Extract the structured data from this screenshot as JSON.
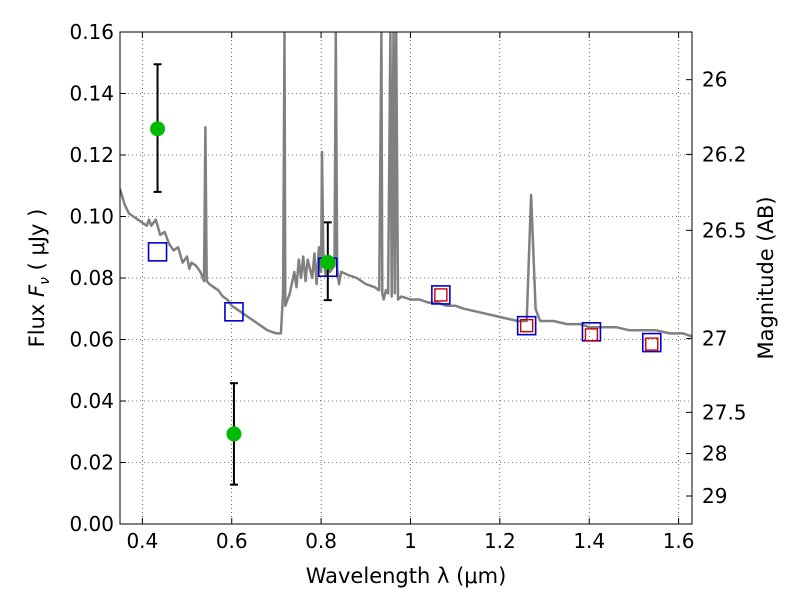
{
  "chart_data": {
    "type": "line",
    "xlabel": "Wavelength  λ (μm)",
    "ylabel": "Flux  Fν (μJy)",
    "ylabel_parts": {
      "prefix": "Flux  ",
      "symbol": "F",
      "subscript": "ν",
      "units": "  ( μJy )"
    },
    "y2label": "Magnitude (AB)",
    "xlim": [
      0.35,
      1.63
    ],
    "ylim": [
      0.0,
      0.16
    ],
    "grid": true,
    "x_ticks": [
      {
        "value": 0.4,
        "label": "0.4"
      },
      {
        "value": 0.6,
        "label": "0.6"
      },
      {
        "value": 0.8,
        "label": "0.8"
      },
      {
        "value": 1.0,
        "label": "1"
      },
      {
        "value": 1.2,
        "label": "1.2"
      },
      {
        "value": 1.4,
        "label": "1.4"
      },
      {
        "value": 1.6,
        "label": "1.6"
      }
    ],
    "y_ticks": [
      {
        "value": 0.0,
        "label": "0.00"
      },
      {
        "value": 0.02,
        "label": "0.02"
      },
      {
        "value": 0.04,
        "label": "0.04"
      },
      {
        "value": 0.06,
        "label": "0.06"
      },
      {
        "value": 0.08,
        "label": "0.08"
      },
      {
        "value": 0.1,
        "label": "0.10"
      },
      {
        "value": 0.12,
        "label": "0.12"
      },
      {
        "value": 0.14,
        "label": "0.14"
      },
      {
        "value": 0.16,
        "label": "0.16"
      }
    ],
    "y2_ticks": [
      {
        "flux": 0.1445,
        "label": "26"
      },
      {
        "flux": 0.1202,
        "label": "26.2"
      },
      {
        "flux": 0.0955,
        "label": "26.5"
      },
      {
        "flux": 0.0603,
        "label": "27"
      },
      {
        "flux": 0.0363,
        "label": "27.5"
      },
      {
        "flux": 0.0229,
        "label": "28"
      },
      {
        "flux": 0.0091,
        "label": "29"
      }
    ],
    "series": [
      {
        "kind": "line",
        "color": "#808080",
        "points": [
          [
            0.35,
            0.109
          ],
          [
            0.36,
            0.104
          ],
          [
            0.37,
            0.101
          ],
          [
            0.38,
            0.1
          ],
          [
            0.39,
            0.099
          ],
          [
            0.4,
            0.098
          ],
          [
            0.41,
            0.097
          ],
          [
            0.415,
            0.099
          ],
          [
            0.42,
            0.097
          ],
          [
            0.43,
            0.099
          ],
          [
            0.44,
            0.094
          ],
          [
            0.45,
            0.095
          ],
          [
            0.46,
            0.091
          ],
          [
            0.47,
            0.089
          ],
          [
            0.48,
            0.09
          ],
          [
            0.49,
            0.085
          ],
          [
            0.5,
            0.087
          ],
          [
            0.505,
            0.083
          ],
          [
            0.51,
            0.085
          ],
          [
            0.52,
            0.084
          ],
          [
            0.53,
            0.082
          ],
          [
            0.538,
            0.079
          ],
          [
            0.541,
            0.129
          ],
          [
            0.544,
            0.079
          ],
          [
            0.55,
            0.078
          ],
          [
            0.56,
            0.077
          ],
          [
            0.57,
            0.076
          ],
          [
            0.58,
            0.074
          ],
          [
            0.59,
            0.073
          ],
          [
            0.6,
            0.071
          ],
          [
            0.62,
            0.069
          ],
          [
            0.64,
            0.067
          ],
          [
            0.66,
            0.065
          ],
          [
            0.68,
            0.063
          ],
          [
            0.7,
            0.062
          ],
          [
            0.71,
            0.062
          ],
          [
            0.715,
            0.075
          ],
          [
            0.718,
            0.16
          ],
          [
            0.72,
            0.071
          ],
          [
            0.73,
            0.075
          ],
          [
            0.74,
            0.082
          ],
          [
            0.745,
            0.077
          ],
          [
            0.75,
            0.086
          ],
          [
            0.755,
            0.08
          ],
          [
            0.76,
            0.087
          ],
          [
            0.765,
            0.079
          ],
          [
            0.77,
            0.086
          ],
          [
            0.78,
            0.08
          ],
          [
            0.785,
            0.088
          ],
          [
            0.79,
            0.078
          ],
          [
            0.795,
            0.09
          ],
          [
            0.8,
            0.082
          ],
          [
            0.802,
            0.121
          ],
          [
            0.805,
            0.088
          ],
          [
            0.81,
            0.081
          ],
          [
            0.815,
            0.085
          ],
          [
            0.82,
            0.082
          ],
          [
            0.83,
            0.084
          ],
          [
            0.833,
            0.16
          ],
          [
            0.836,
            0.083
          ],
          [
            0.84,
            0.078
          ],
          [
            0.845,
            0.082
          ],
          [
            0.86,
            0.081
          ],
          [
            0.88,
            0.08
          ],
          [
            0.9,
            0.078
          ],
          [
            0.92,
            0.077
          ],
          [
            0.93,
            0.076
          ],
          [
            0.935,
            0.16
          ],
          [
            0.937,
            0.075
          ],
          [
            0.94,
            0.073
          ],
          [
            0.945,
            0.076
          ],
          [
            0.95,
            0.075
          ],
          [
            0.955,
            0.16
          ],
          [
            0.958,
            0.074
          ],
          [
            0.962,
            0.16
          ],
          [
            0.965,
            0.075
          ],
          [
            0.968,
            0.16
          ],
          [
            0.972,
            0.073
          ],
          [
            0.98,
            0.074
          ],
          [
            1.0,
            0.073
          ],
          [
            1.02,
            0.073
          ],
          [
            1.04,
            0.072
          ],
          [
            1.06,
            0.072
          ],
          [
            1.08,
            0.071
          ],
          [
            1.1,
            0.071
          ],
          [
            1.12,
            0.07
          ],
          [
            1.15,
            0.069
          ],
          [
            1.18,
            0.068
          ],
          [
            1.21,
            0.067
          ],
          [
            1.24,
            0.066
          ],
          [
            1.26,
            0.066
          ],
          [
            1.27,
            0.107
          ],
          [
            1.28,
            0.07
          ],
          [
            1.29,
            0.066
          ],
          [
            1.32,
            0.066
          ],
          [
            1.35,
            0.065
          ],
          [
            1.38,
            0.065
          ],
          [
            1.4,
            0.064
          ],
          [
            1.43,
            0.064
          ],
          [
            1.46,
            0.064
          ],
          [
            1.49,
            0.063
          ],
          [
            1.52,
            0.063
          ],
          [
            1.55,
            0.063
          ],
          [
            1.58,
            0.062
          ],
          [
            1.61,
            0.062
          ],
          [
            1.63,
            0.061
          ]
        ]
      },
      {
        "kind": "blue-squares",
        "color": "#0000cc",
        "points": [
          [
            0.434,
            0.0885
          ],
          [
            0.605,
            0.069
          ],
          [
            0.815,
            0.0835
          ],
          [
            1.068,
            0.0745
          ],
          [
            1.26,
            0.0645
          ],
          [
            1.405,
            0.0625
          ],
          [
            1.54,
            0.059
          ]
        ]
      },
      {
        "kind": "red-squares",
        "color": "#cc0000",
        "points": [
          [
            1.068,
            0.0745
          ],
          [
            1.26,
            0.0645
          ],
          [
            1.405,
            0.0615
          ],
          [
            1.54,
            0.0585
          ]
        ]
      },
      {
        "kind": "green-points-with-errors",
        "color": "#00bb00",
        "points": [
          {
            "x": 0.434,
            "y": 0.1285,
            "low": 0.108,
            "high": 0.1495
          },
          {
            "x": 0.605,
            "y": 0.0293,
            "low": 0.0128,
            "high": 0.0458
          },
          {
            "x": 0.815,
            "y": 0.0851,
            "low": 0.0728,
            "high": 0.0981
          }
        ]
      }
    ]
  }
}
